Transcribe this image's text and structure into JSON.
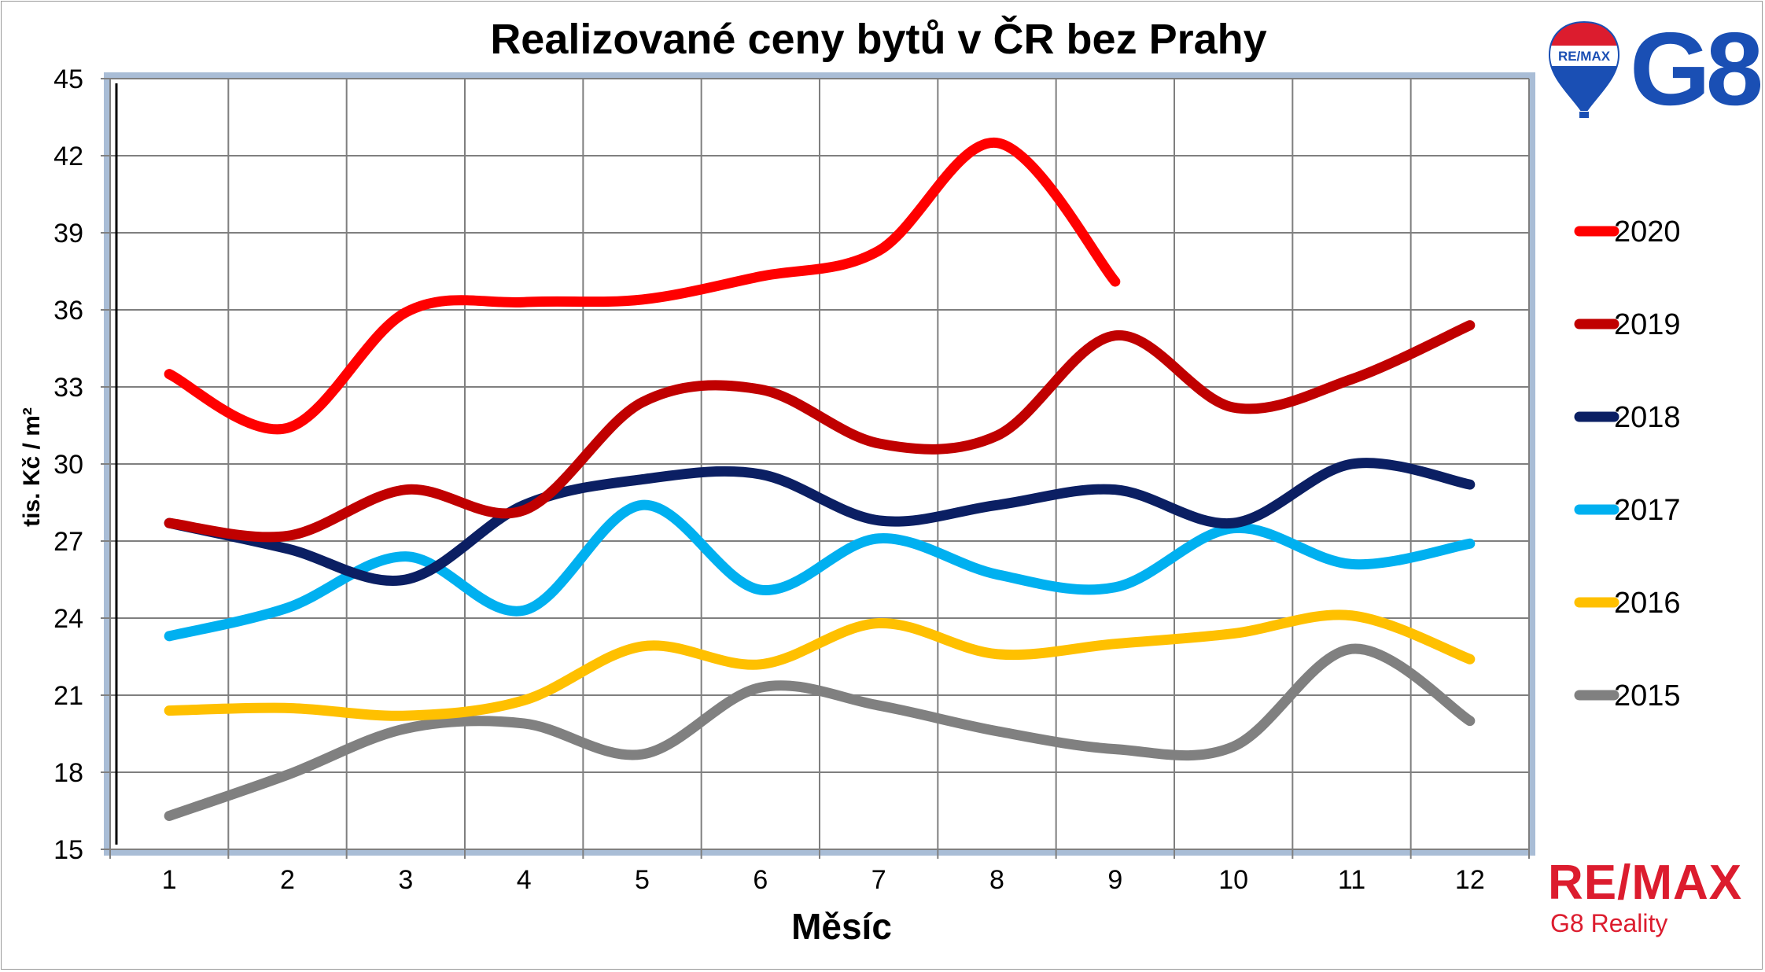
{
  "chart_data": {
    "type": "line",
    "title": "Realizované ceny bytů v ČR bez Prahy",
    "xlabel": "Měsíc",
    "ylabel": "tis. Kč / m²",
    "x": [
      1,
      2,
      3,
      4,
      5,
      6,
      7,
      8,
      9,
      10,
      11,
      12
    ],
    "ylim": [
      15,
      45
    ],
    "yticks": [
      15,
      18,
      21,
      24,
      27,
      30,
      33,
      36,
      39,
      42,
      45
    ],
    "grid": true,
    "legend_position": "right",
    "series": [
      {
        "name": "2020",
        "color": "#ff0000",
        "values": [
          33.5,
          31.4,
          35.9,
          36.3,
          36.4,
          37.3,
          38.3,
          42.5,
          37.1,
          null,
          null,
          null
        ]
      },
      {
        "name": "2019",
        "color": "#c00000",
        "values": [
          27.7,
          27.2,
          29.0,
          28.2,
          32.4,
          32.9,
          30.8,
          31.1,
          35.0,
          32.2,
          33.3,
          35.4
        ]
      },
      {
        "name": "2018",
        "color": "#0b1f63",
        "values": [
          27.7,
          26.7,
          25.5,
          28.4,
          29.4,
          29.6,
          27.8,
          28.4,
          29.0,
          27.7,
          30.0,
          29.2
        ]
      },
      {
        "name": "2017",
        "color": "#00b0f0",
        "values": [
          23.3,
          24.4,
          26.4,
          24.3,
          28.4,
          25.1,
          27.1,
          25.7,
          25.2,
          27.5,
          26.1,
          26.9
        ]
      },
      {
        "name": "2016",
        "color": "#ffc000",
        "values": [
          20.4,
          20.5,
          20.2,
          20.8,
          22.9,
          22.2,
          23.8,
          22.6,
          23.0,
          23.4,
          24.1,
          22.4
        ]
      },
      {
        "name": "2015",
        "color": "#808080",
        "values": [
          16.3,
          17.9,
          19.7,
          19.9,
          18.7,
          21.3,
          20.6,
          19.6,
          18.9,
          19.0,
          22.8,
          20.0
        ]
      }
    ]
  },
  "branding": {
    "balloon_text": "RE/MAX",
    "logo_g8": "G8",
    "remax_wordmark": "RE/MAX",
    "remax_sub": "G8 Reality"
  }
}
